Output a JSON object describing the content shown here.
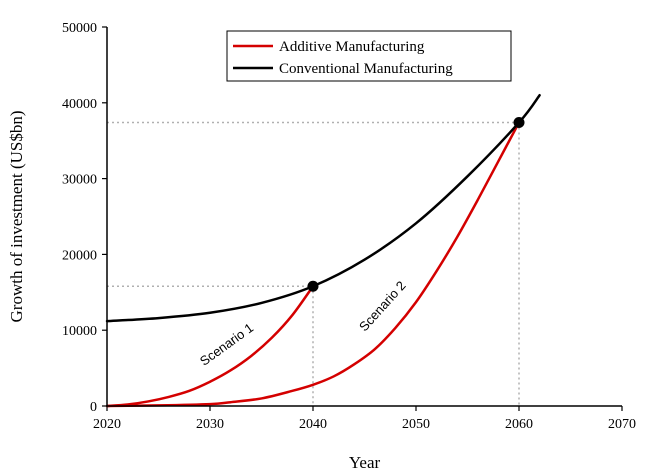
{
  "chart_data": {
    "type": "line",
    "xlabel": "Year",
    "ylabel": "Growth of investment (US$bn)",
    "xlim": [
      2020,
      2070
    ],
    "ylim": [
      0,
      50000
    ],
    "xticks": [
      2020,
      2030,
      2040,
      2050,
      2060,
      2070
    ],
    "yticks": [
      0,
      10000,
      20000,
      30000,
      40000,
      50000
    ],
    "grid": false,
    "legend_position": "top-center",
    "series": [
      {
        "name": "Additive Manufacturing",
        "color": "#d40000",
        "label": "Scenario 1",
        "x": [
          2020,
          2022,
          2024,
          2026,
          2028,
          2030,
          2032,
          2034,
          2036,
          2038,
          2040
        ],
        "y": [
          0,
          200,
          600,
          1200,
          2000,
          3200,
          4700,
          6600,
          9000,
          12000,
          15800
        ]
      },
      {
        "name": "Additive Manufacturing",
        "color": "#d40000",
        "label": "Scenario 2",
        "x": [
          2020,
          2025,
          2030,
          2032,
          2035,
          2038,
          2040,
          2042,
          2044,
          2046,
          2048,
          2050,
          2052,
          2054,
          2056,
          2058,
          2060
        ],
        "y": [
          0,
          80,
          250,
          500,
          1000,
          2000,
          2800,
          3900,
          5500,
          7500,
          10300,
          13700,
          17800,
          22300,
          27200,
          32300,
          37400
        ]
      },
      {
        "name": "Conventional Manufacturing",
        "color": "#000000",
        "x": [
          2020,
          2025,
          2030,
          2035,
          2040,
          2045,
          2050,
          2055,
          2060,
          2062
        ],
        "y": [
          11200,
          11600,
          12300,
          13600,
          15800,
          19300,
          24100,
          30300,
          37400,
          41000
        ]
      }
    ],
    "markers": [
      {
        "x": 2040,
        "y": 15800
      },
      {
        "x": 2060,
        "y": 37400
      }
    ],
    "legend": [
      "Additive Manufacturing",
      "Conventional Manufacturing"
    ],
    "annotations": [
      "Scenario 1",
      "Scenario 2"
    ]
  }
}
